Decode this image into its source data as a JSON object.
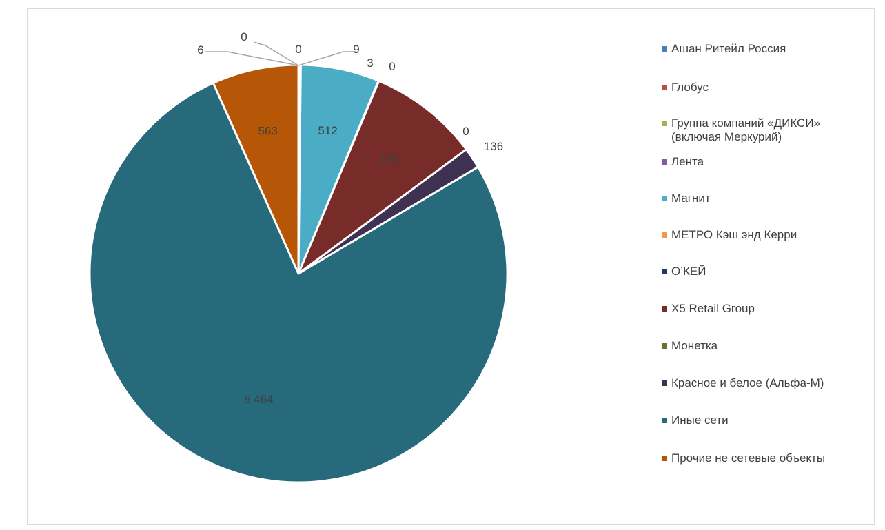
{
  "header": {
    "text": ""
  },
  "chart_data": {
    "type": "pie",
    "title": "",
    "start_angle_deg": 0,
    "clockwise": true,
    "slices": [
      {
        "label": "Ашан Ритейл Россия",
        "value": 0,
        "value_text": "0",
        "color": "#4a7ebb"
      },
      {
        "label": "Глобус",
        "value": 6,
        "value_text": "6",
        "color": "#be4b48"
      },
      {
        "label": "Группа компаний «ДИКСИ» (включая Меркурий)",
        "value": 0,
        "value_text": "0",
        "color": "#98b954"
      },
      {
        "label": "Лента",
        "value": 9,
        "value_text": "9",
        "color": "#7d60a0"
      },
      {
        "label": "Магнит",
        "value": 512,
        "value_text": "512",
        "color": "#4bacc6"
      },
      {
        "label": "МЕТРО Кэш энд Керри",
        "value": 3,
        "value_text": "3",
        "color": "#f79646"
      },
      {
        "label": "О’КЕЙ",
        "value": 0,
        "value_text": "0",
        "color": "#1f3864"
      },
      {
        "label": "X5 Retail Group",
        "value": 720,
        "value_text": "720",
        "color": "#772c2a"
      },
      {
        "label": "Монетка",
        "value": 0,
        "value_text": "0",
        "color": "#5f7530"
      },
      {
        "label": "Красное и белое (Альфа-М)",
        "value": 136,
        "value_text": "136",
        "color": "#3f3151"
      },
      {
        "label": "Иные  сети",
        "value": 6464,
        "value_text": "6 464",
        "color": "#276a7c"
      },
      {
        "label": "Прочие не сетевые объекты",
        "value": 563,
        "value_text": "563",
        "color": "#b65708"
      }
    ],
    "legend_position": "right"
  }
}
